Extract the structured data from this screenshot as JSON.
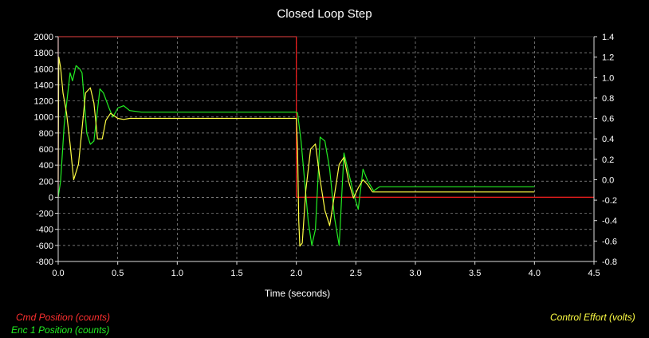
{
  "chart_data": {
    "type": "line",
    "title": "Closed Loop Step",
    "xlabel": "Time (seconds)",
    "ylabel_left": "",
    "ylabel_right": "",
    "xlim": [
      0,
      4.5
    ],
    "ylim_left": [
      -800,
      2000
    ],
    "ylim_right": [
      -0.8,
      1.4
    ],
    "x_ticks": [
      "0.0",
      "0.5",
      "1.0",
      "1.5",
      "2.0",
      "2.5",
      "3.0",
      "3.5",
      "4.0",
      "4.5"
    ],
    "y_left_ticks": [
      "2000",
      "1800",
      "1600",
      "1400",
      "1200",
      "1000",
      "800",
      "600",
      "400",
      "200",
      "0",
      "-200",
      "-400",
      "-600",
      "-800"
    ],
    "y_right_ticks": [
      "1.4",
      "1.2",
      "1.0",
      "0.8",
      "0.6",
      "0.4",
      "0.2",
      "0.0",
      "-0.2",
      "-0.4",
      "-0.6",
      "-0.8"
    ],
    "grid": true,
    "legend_left": [
      "Cmd Position (counts)",
      "Enc 1 Position (counts)"
    ],
    "legend_right": [
      "Control Effort (volts)"
    ],
    "series": [
      {
        "name": "Cmd Position (counts)",
        "axis": "left",
        "color": "#ff2020",
        "x": [
          0.0,
          0.0,
          2.0,
          2.0,
          4.5
        ],
        "y": [
          0,
          2000,
          2000,
          0,
          0
        ]
      },
      {
        "name": "Enc 1 Position (counts)",
        "axis": "left",
        "color": "#22ee22",
        "x": [
          0.0,
          0.02,
          0.05,
          0.1,
          0.12,
          0.15,
          0.18,
          0.2,
          0.24,
          0.27,
          0.3,
          0.35,
          0.38,
          0.43,
          0.46,
          0.5,
          0.55,
          0.6,
          0.7,
          2.0,
          2.01,
          2.04,
          2.07,
          2.1,
          2.13,
          2.16,
          2.2,
          2.24,
          2.28,
          2.32,
          2.36,
          2.4,
          2.44,
          2.48,
          2.52,
          2.56,
          2.6,
          2.65,
          2.7,
          2.75,
          2.8,
          3.0,
          4.0
        ],
        "y": [
          0,
          200,
          900,
          1550,
          1450,
          1640,
          1600,
          1550,
          800,
          660,
          700,
          1350,
          1300,
          1100,
          1000,
          1110,
          1140,
          1080,
          1060,
          1060,
          1050,
          700,
          200,
          -300,
          -600,
          -400,
          750,
          700,
          350,
          -250,
          -600,
          550,
          300,
          50,
          -150,
          350,
          200,
          80,
          130,
          130,
          130,
          130,
          130
        ]
      },
      {
        "name": "Control Effort (volts)",
        "axis": "right",
        "color": "#ffff44",
        "x": [
          0.0,
          0.005,
          0.02,
          0.04,
          0.07,
          0.1,
          0.13,
          0.17,
          0.2,
          0.23,
          0.27,
          0.3,
          0.33,
          0.37,
          0.4,
          0.44,
          0.5,
          0.55,
          0.6,
          2.0,
          2.01,
          2.02,
          2.03,
          2.05,
          2.08,
          2.12,
          2.16,
          2.2,
          2.24,
          2.28,
          2.32,
          2.36,
          2.4,
          2.44,
          2.48,
          2.52,
          2.56,
          2.6,
          2.64,
          2.7,
          4.0
        ],
        "y": [
          0.0,
          1.2,
          1.1,
          0.85,
          0.65,
          0.35,
          0.0,
          0.15,
          0.5,
          0.85,
          0.9,
          0.75,
          0.4,
          0.4,
          0.58,
          0.65,
          0.6,
          0.59,
          0.6,
          0.6,
          0.3,
          -0.4,
          -0.65,
          -0.62,
          -0.1,
          0.3,
          0.35,
          0.0,
          -0.3,
          -0.45,
          -0.15,
          0.15,
          0.22,
          -0.02,
          -0.18,
          -0.08,
          0.0,
          -0.05,
          -0.12,
          -0.12,
          -0.12
        ]
      }
    ]
  }
}
